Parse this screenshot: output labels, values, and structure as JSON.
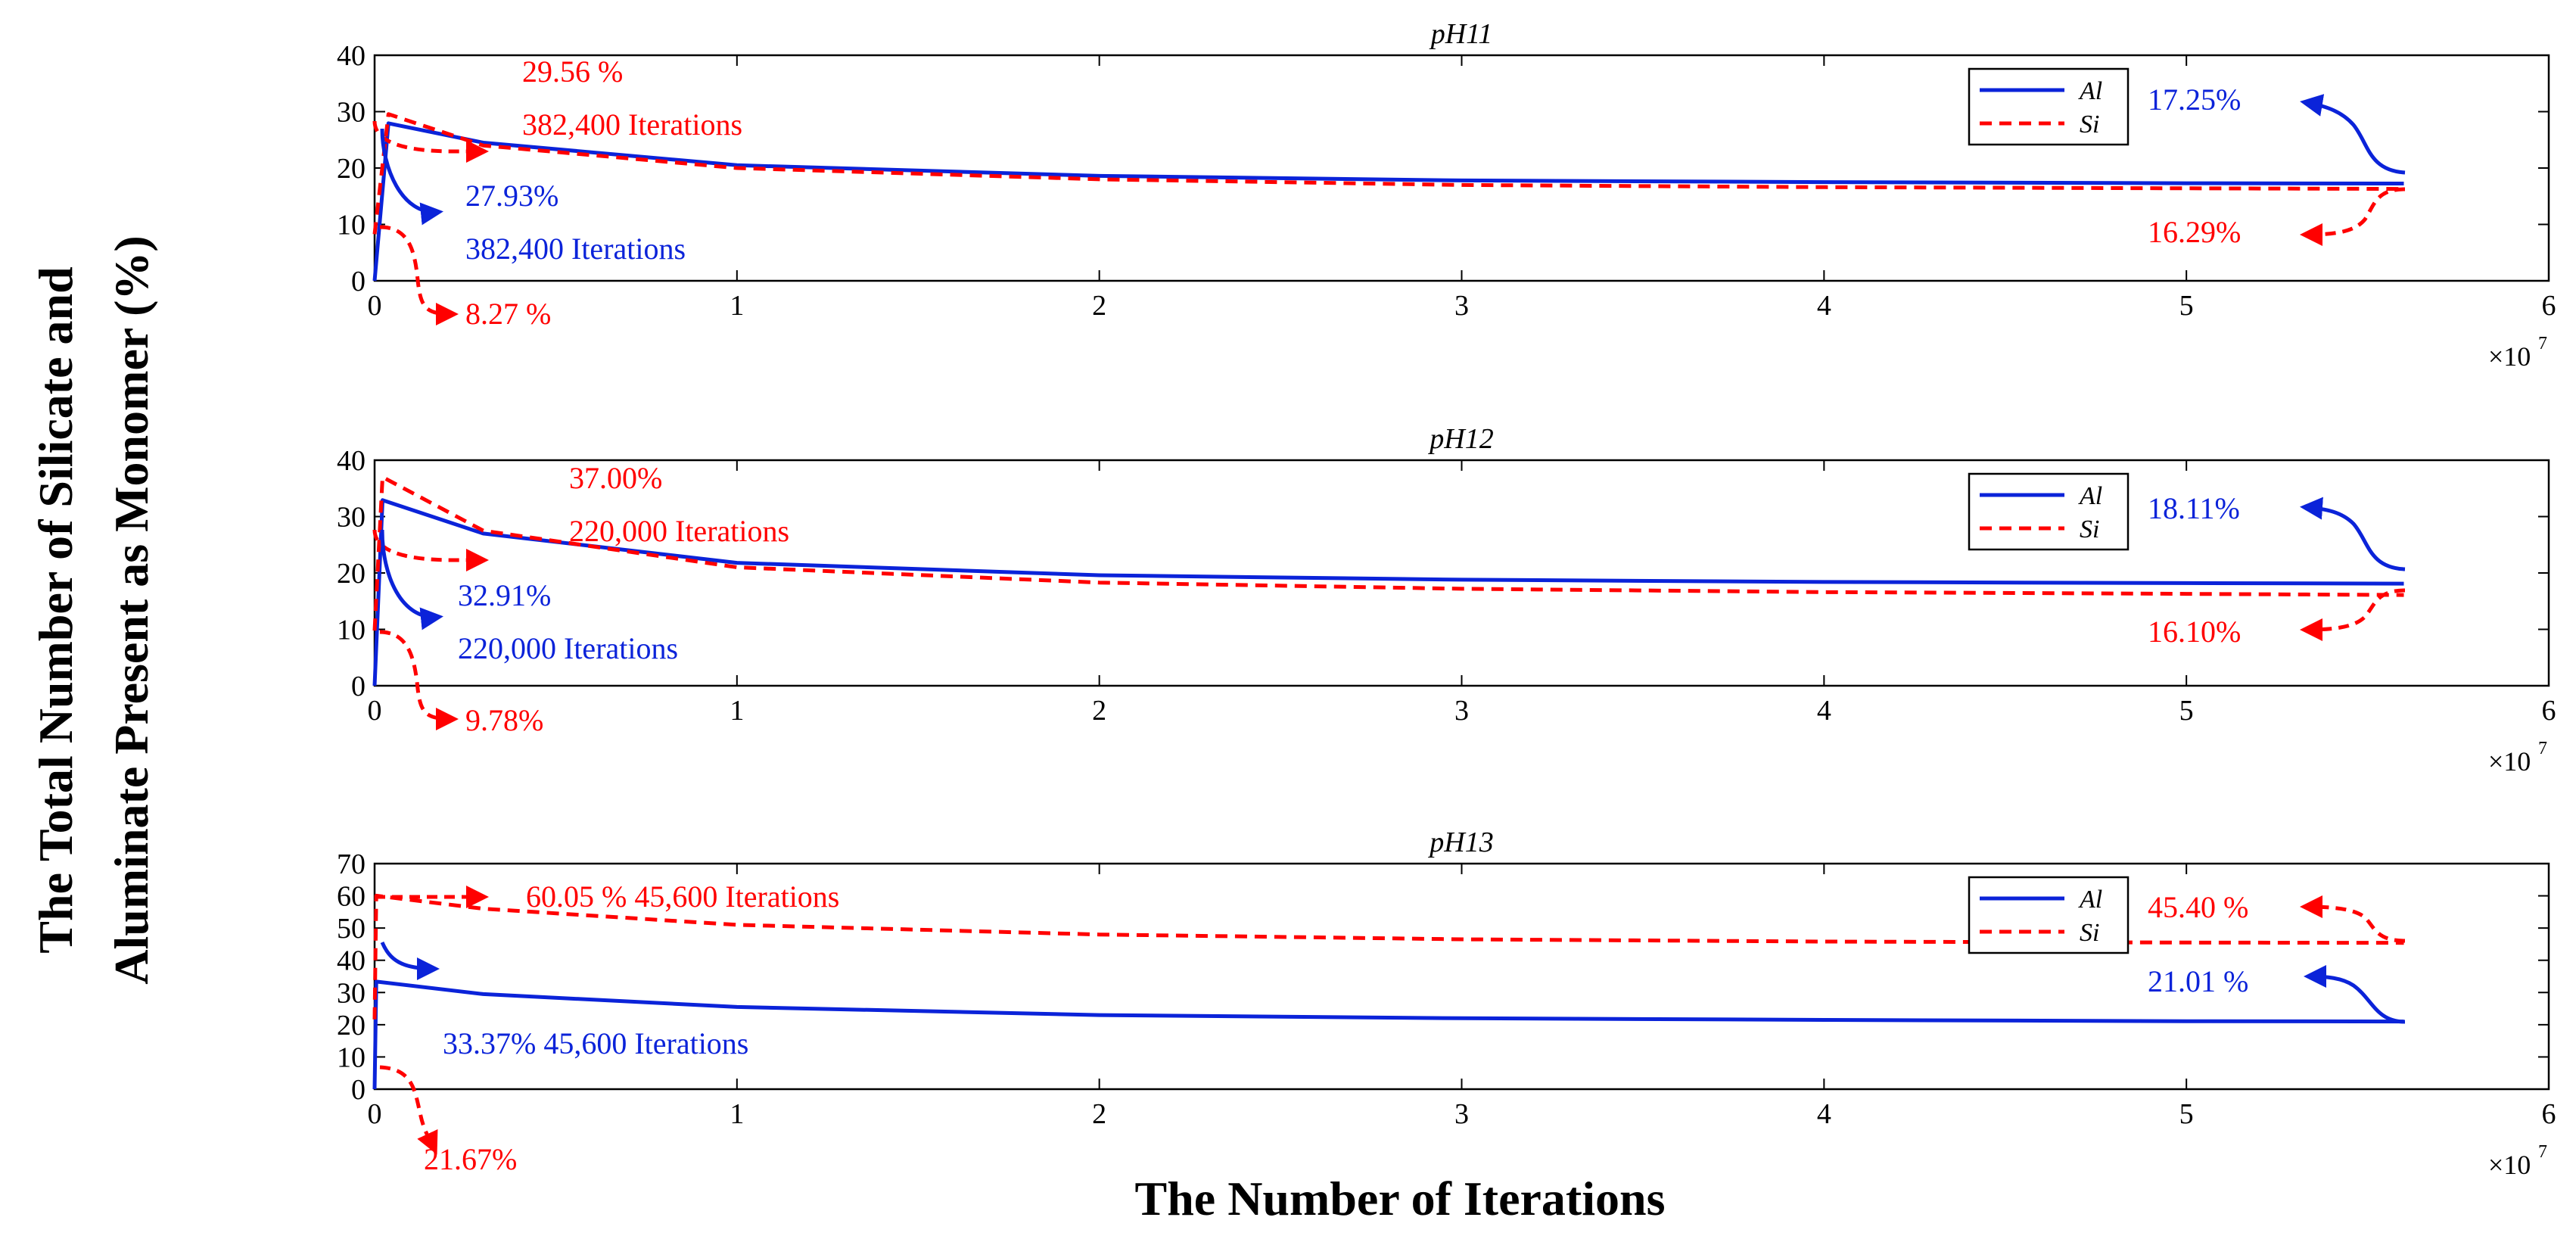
{
  "figure": {
    "ylabel_line1": "The Total Number of Silicate and",
    "ylabel_line2": "Aluminate Present as Monomer (%)",
    "xlabel": "The Number of Iterations",
    "x_multiplier_base": "×10",
    "x_multiplier_exp": "7"
  },
  "colors": {
    "Al": "#0b23d9",
    "Si": "#ff0000",
    "axis": "#000000"
  },
  "chart_data": [
    {
      "type": "line",
      "title": "pH11",
      "xlim": [
        0,
        6
      ],
      "x_scale": "×10^7",
      "ylim": [
        0,
        40
      ],
      "yticks": [
        0,
        10,
        20,
        30,
        40
      ],
      "xticks": [
        0,
        1,
        2,
        3,
        4,
        5,
        6
      ],
      "grid": false,
      "legend": {
        "position": "top-right",
        "entries": [
          "Al",
          "Si"
        ]
      },
      "series": [
        {
          "name": "Al",
          "style": "solid",
          "x": [
            0,
            0.0382,
            0.3,
            1,
            2,
            3,
            4,
            5,
            5.6
          ],
          "y": [
            0,
            27.93,
            24.5,
            20.5,
            18.6,
            17.8,
            17.5,
            17.3,
            17.25
          ]
        },
        {
          "name": "Si",
          "style": "dashed",
          "x": [
            0,
            0.0382,
            0.3,
            1,
            2,
            3,
            4,
            5,
            5.6
          ],
          "y": [
            8.27,
            29.56,
            24.0,
            20.0,
            18.0,
            17.0,
            16.6,
            16.4,
            16.29
          ]
        }
      ],
      "annotations": [
        {
          "text": "29.56 %",
          "series": "Si"
        },
        {
          "text": "382,400 Iterations",
          "series": "Si"
        },
        {
          "text": "27.93%",
          "series": "Al"
        },
        {
          "text": "382,400 Iterations",
          "series": "Al"
        },
        {
          "text": "8.27 %",
          "series": "Si"
        },
        {
          "text": "17.25%",
          "series": "Al"
        },
        {
          "text": "16.29%",
          "series": "Si"
        }
      ]
    },
    {
      "type": "line",
      "title": "pH12",
      "xlim": [
        0,
        6
      ],
      "x_scale": "×10^7",
      "ylim": [
        0,
        40
      ],
      "yticks": [
        0,
        10,
        20,
        30,
        40
      ],
      "xticks": [
        0,
        1,
        2,
        3,
        4,
        5,
        6
      ],
      "grid": false,
      "legend": {
        "position": "top-right",
        "entries": [
          "Al",
          "Si"
        ]
      },
      "series": [
        {
          "name": "Al",
          "style": "solid",
          "x": [
            0,
            0.022,
            0.3,
            1,
            2,
            3,
            4,
            5,
            5.6
          ],
          "y": [
            0,
            32.91,
            27.0,
            21.8,
            19.6,
            18.8,
            18.4,
            18.2,
            18.11
          ]
        },
        {
          "name": "Si",
          "style": "dashed",
          "x": [
            0,
            0.022,
            0.3,
            1,
            2,
            3,
            4,
            5,
            5.6
          ],
          "y": [
            9.78,
            37.0,
            27.5,
            21.0,
            18.3,
            17.2,
            16.6,
            16.3,
            16.1
          ]
        }
      ],
      "annotations": [
        {
          "text": "37.00%",
          "series": "Si"
        },
        {
          "text": "220,000 Iterations",
          "series": "Si"
        },
        {
          "text": "32.91%",
          "series": "Al"
        },
        {
          "text": "220,000 Iterations",
          "series": "Al"
        },
        {
          "text": "9.78%",
          "series": "Si"
        },
        {
          "text": "18.11%",
          "series": "Al"
        },
        {
          "text": "16.10%",
          "series": "Si"
        }
      ]
    },
    {
      "type": "line",
      "title": "pH13",
      "xlim": [
        0,
        6
      ],
      "x_scale": "×10^7",
      "ylim": [
        0,
        70
      ],
      "yticks": [
        0,
        10,
        20,
        30,
        40,
        50,
        60,
        70
      ],
      "xticks": [
        0,
        1,
        2,
        3,
        4,
        5,
        6
      ],
      "grid": false,
      "legend": {
        "position": "top-right",
        "entries": [
          "Al",
          "Si"
        ]
      },
      "series": [
        {
          "name": "Al",
          "style": "solid",
          "x": [
            0,
            0.00456,
            0.3,
            1,
            2,
            3,
            4,
            5,
            5.6
          ],
          "y": [
            0,
            33.37,
            29.5,
            25.5,
            23.0,
            22.0,
            21.5,
            21.1,
            21.01
          ]
        },
        {
          "name": "Si",
          "style": "dashed",
          "x": [
            0,
            0.00456,
            0.3,
            1,
            2,
            3,
            4,
            5,
            5.6
          ],
          "y": [
            21.67,
            60.05,
            56.0,
            51.0,
            48.0,
            46.5,
            45.8,
            45.5,
            45.4
          ]
        }
      ],
      "annotations": [
        {
          "text": "60.05 % 45,600 Iterations",
          "series": "Si"
        },
        {
          "text": "33.37% 45,600 Iterations",
          "series": "Al"
        },
        {
          "text": "21.67%",
          "series": "Si"
        },
        {
          "text": "45.40 %",
          "series": "Si"
        },
        {
          "text": "21.01 %",
          "series": "Al"
        }
      ]
    }
  ]
}
